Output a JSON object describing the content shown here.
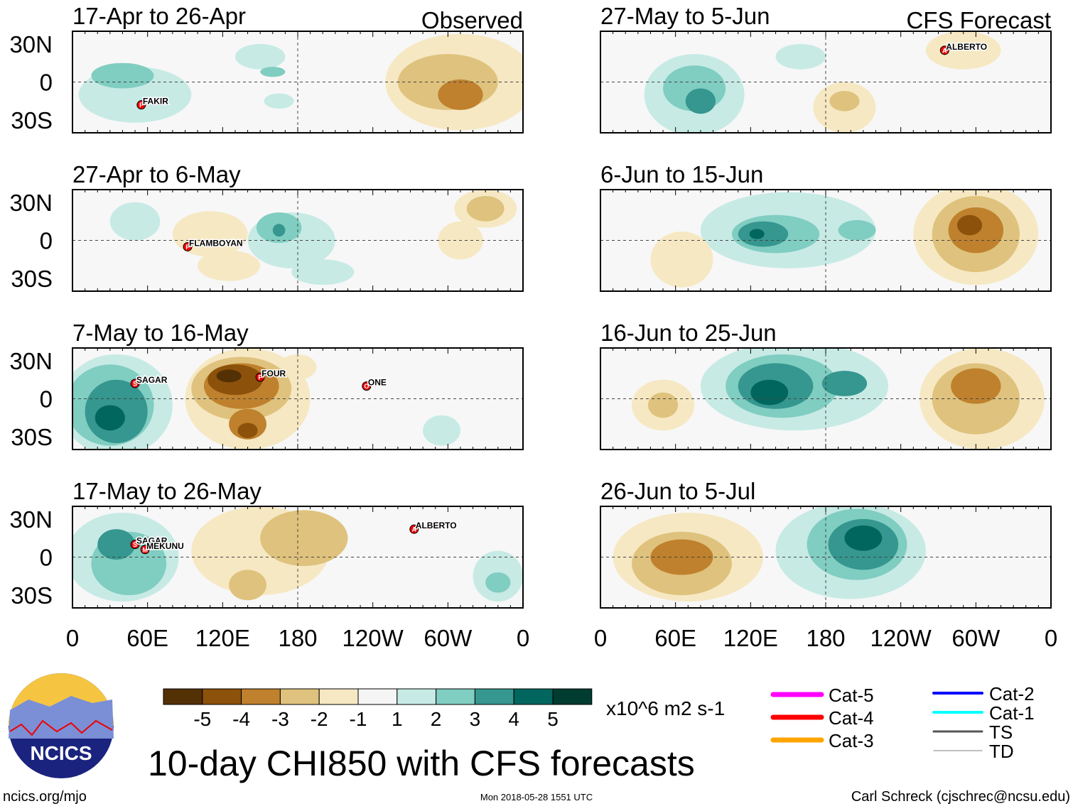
{
  "title": "10-day CHI850 with CFS forecasts",
  "footer": {
    "left": "ncics.org/mjo",
    "center": "Mon 2018-05-28 1551 UTC",
    "right": "Carl Schreck (cjschrec@ncsu.edu)"
  },
  "logo_text": "NCICS",
  "columns": [
    {
      "header": "Observed"
    },
    {
      "header": "CFS Forecast"
    }
  ],
  "lat_ticks": [
    "30N",
    "0",
    "30S"
  ],
  "lon_ticks": [
    "0",
    "60E",
    "120E",
    "180",
    "120W",
    "60W",
    "0"
  ],
  "colorbar": {
    "units": "x10^6 m2 s-1",
    "labels": [
      "-5",
      "-4",
      "-3",
      "-2",
      "-1",
      "1",
      "2",
      "3",
      "4",
      "5"
    ],
    "colors": [
      "#543005",
      "#8c510a",
      "#bf812d",
      "#dfc27d",
      "#f6e8c3",
      "#f5f5f5",
      "#c7eae5",
      "#80cdc1",
      "#35978f",
      "#01665e",
      "#003c30"
    ]
  },
  "storm_legend": [
    {
      "label": "Cat-5",
      "color": "#ff00ff"
    },
    {
      "label": "Cat-4",
      "color": "#ff0000"
    },
    {
      "label": "Cat-3",
      "color": "#ffa500"
    },
    {
      "label": "Cat-2",
      "color": "#0000ff"
    },
    {
      "label": "Cat-1",
      "color": "#00ffff"
    },
    {
      "label": "TS",
      "color": "#555555"
    },
    {
      "label": "TD",
      "color": "#aaaaaa"
    }
  ],
  "chart_data": {
    "type": "heatmap",
    "variable": "CHI850 anomaly",
    "lon_range": [
      0,
      360
    ],
    "lat_range": [
      -40,
      40
    ],
    "panels": [
      {
        "title": "17-Apr to 26-Apr",
        "column": 0,
        "row": 0,
        "anomalies": [
          [
            50,
            -10,
            1,
            45,
            22
          ],
          [
            40,
            5,
            2,
            25,
            10
          ],
          [
            150,
            20,
            1,
            20,
            10
          ],
          [
            160,
            8,
            2,
            10,
            4
          ],
          [
            165,
            -15,
            1,
            12,
            6
          ],
          [
            310,
            0,
            -1,
            60,
            38
          ],
          [
            300,
            0,
            -2,
            40,
            22
          ],
          [
            310,
            -10,
            -3,
            18,
            12
          ]
        ],
        "storms": [
          {
            "name": "FAKIR",
            "lon": 55,
            "lat": -18,
            "cat": "F"
          }
        ]
      },
      {
        "title": "27-Apr to 6-May",
        "column": 0,
        "row": 1,
        "anomalies": [
          [
            50,
            15,
            1,
            20,
            15
          ],
          [
            110,
            5,
            -1,
            30,
            18
          ],
          [
            125,
            -20,
            -1,
            25,
            12
          ],
          [
            175,
            0,
            1,
            35,
            22
          ],
          [
            165,
            10,
            2,
            18,
            12
          ],
          [
            165,
            8,
            3,
            5,
            5
          ],
          [
            200,
            -25,
            1,
            25,
            10
          ],
          [
            330,
            25,
            -1,
            25,
            15
          ],
          [
            330,
            25,
            -2,
            15,
            10
          ],
          [
            310,
            0,
            -1,
            18,
            15
          ]
        ],
        "storms": [
          {
            "name": "FLAMBOYAN",
            "lon": 92,
            "lat": -5,
            "cat": "F"
          }
        ]
      },
      {
        "title": "7-May to 16-May",
        "column": 0,
        "row": 2,
        "anomalies": [
          [
            35,
            -5,
            1,
            45,
            40
          ],
          [
            30,
            -5,
            2,
            35,
            32
          ],
          [
            35,
            -10,
            3,
            25,
            25
          ],
          [
            30,
            -15,
            4,
            12,
            10
          ],
          [
            140,
            0,
            -1,
            50,
            40
          ],
          [
            135,
            8,
            -2,
            40,
            25
          ],
          [
            135,
            10,
            -3,
            30,
            18
          ],
          [
            130,
            15,
            -4,
            22,
            12
          ],
          [
            125,
            18,
            -5,
            10,
            5
          ],
          [
            140,
            -20,
            -3,
            15,
            12
          ],
          [
            140,
            -25,
            -4,
            8,
            6
          ],
          [
            180,
            25,
            -1,
            15,
            10
          ],
          [
            295,
            -25,
            1,
            15,
            12
          ]
        ],
        "storms": [
          {
            "name": "SAGAR",
            "lon": 50,
            "lat": 12,
            "cat": "S"
          },
          {
            "name": "FOUR",
            "lon": 150,
            "lat": 17,
            "cat": "F"
          },
          {
            "name": "ONE",
            "lon": 235,
            "lat": 10,
            "cat": "O"
          }
        ]
      },
      {
        "title": "17-May to 26-May",
        "column": 0,
        "row": 3,
        "anomalies": [
          [
            40,
            0,
            1,
            45,
            35
          ],
          [
            45,
            -5,
            2,
            30,
            25
          ],
          [
            35,
            10,
            3,
            15,
            12
          ],
          [
            150,
            5,
            -1,
            55,
            35
          ],
          [
            185,
            15,
            -2,
            35,
            22
          ],
          [
            140,
            -22,
            -2,
            15,
            12
          ],
          [
            340,
            -15,
            1,
            20,
            20
          ],
          [
            340,
            -20,
            2,
            10,
            8
          ]
        ],
        "storms": [
          {
            "name": "SAGAR",
            "lon": 50,
            "lat": 10,
            "cat": "S"
          },
          {
            "name": "MEKUNU",
            "lon": 58,
            "lat": 6,
            "cat": "M"
          },
          {
            "name": "ALBERTO",
            "lon": 273,
            "lat": 22,
            "cat": "A"
          }
        ]
      },
      {
        "title": "27-May to 5-Jun",
        "column": 1,
        "row": 0,
        "anomalies": [
          [
            75,
            -10,
            1,
            40,
            32
          ],
          [
            75,
            -5,
            2,
            25,
            18
          ],
          [
            80,
            -15,
            3,
            12,
            10
          ],
          [
            160,
            20,
            1,
            20,
            10
          ],
          [
            290,
            25,
            -1,
            30,
            15
          ],
          [
            195,
            -20,
            -1,
            25,
            20
          ],
          [
            195,
            -15,
            -2,
            12,
            8
          ]
        ],
        "storms": [
          {
            "name": "ALBERTO",
            "lon": 275,
            "lat": 25,
            "cat": "A"
          }
        ]
      },
      {
        "title": "6-Jun to 15-Jun",
        "column": 1,
        "row": 1,
        "anomalies": [
          [
            150,
            8,
            1,
            70,
            30
          ],
          [
            140,
            5,
            2,
            35,
            15
          ],
          [
            130,
            5,
            3,
            20,
            10
          ],
          [
            125,
            5,
            4,
            6,
            4
          ],
          [
            205,
            8,
            2,
            15,
            8
          ],
          [
            300,
            5,
            -1,
            50,
            40
          ],
          [
            300,
            5,
            -2,
            35,
            30
          ],
          [
            300,
            8,
            -3,
            22,
            18
          ],
          [
            295,
            12,
            -4,
            10,
            8
          ],
          [
            65,
            -15,
            -1,
            25,
            22
          ]
        ],
        "storms": []
      },
      {
        "title": "16-Jun to 25-Jun",
        "column": 1,
        "row": 2,
        "anomalies": [
          [
            155,
            10,
            1,
            75,
            35
          ],
          [
            145,
            10,
            2,
            45,
            25
          ],
          [
            140,
            10,
            3,
            30,
            18
          ],
          [
            135,
            5,
            4,
            15,
            10
          ],
          [
            195,
            12,
            3,
            18,
            10
          ],
          [
            305,
            0,
            -1,
            50,
            40
          ],
          [
            300,
            0,
            -2,
            35,
            28
          ],
          [
            300,
            10,
            -3,
            20,
            14
          ],
          [
            50,
            -5,
            -1,
            25,
            20
          ],
          [
            50,
            -5,
            -2,
            12,
            10
          ]
        ],
        "storms": []
      },
      {
        "title": "26-Jun to 5-Jul",
        "column": 1,
        "row": 3,
        "anomalies": [
          [
            70,
            0,
            -1,
            60,
            35
          ],
          [
            65,
            -5,
            -2,
            40,
            25
          ],
          [
            65,
            0,
            -3,
            25,
            14
          ],
          [
            200,
            5,
            1,
            60,
            38
          ],
          [
            205,
            10,
            2,
            40,
            28
          ],
          [
            210,
            10,
            3,
            28,
            20
          ],
          [
            210,
            15,
            4,
            15,
            10
          ]
        ],
        "storms": []
      }
    ]
  }
}
